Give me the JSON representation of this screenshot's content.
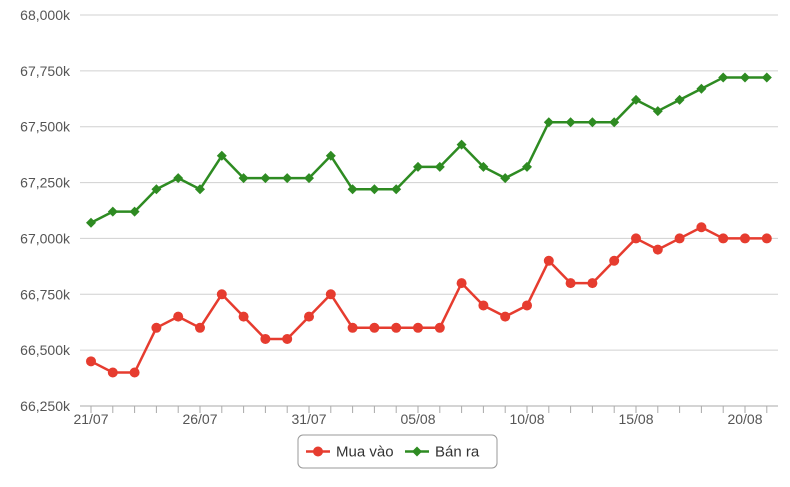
{
  "chart_data": {
    "type": "line",
    "title": "",
    "xlabel": "",
    "ylabel": "",
    "ylim": [
      66250,
      68000
    ],
    "y_ticks": [
      "66,250k",
      "66,500k",
      "66,750k",
      "67,000k",
      "67,250k",
      "67,500k",
      "67,750k",
      "68,000k"
    ],
    "x": [
      "21/07",
      "22/07",
      "23/07",
      "24/07",
      "25/07",
      "26/07",
      "27/07",
      "28/07",
      "29/07",
      "30/07",
      "31/07",
      "01/08",
      "02/08",
      "03/08",
      "04/08",
      "05/08",
      "06/08",
      "07/08",
      "08/08",
      "09/08",
      "10/08",
      "11/08",
      "12/08",
      "13/08",
      "14/08",
      "15/08",
      "16/08",
      "17/08",
      "18/08",
      "19/08",
      "20/08",
      "21/08"
    ],
    "x_tick_labels": [
      "21/07",
      "26/07",
      "31/07",
      "05/08",
      "10/08",
      "15/08",
      "20/08"
    ],
    "grid": true,
    "legend_position": "bottom-center",
    "series": [
      {
        "name": "Mua vào",
        "color": "#e63c2f",
        "marker": "circle",
        "values": [
          66450,
          66400,
          66400,
          66600,
          66650,
          66600,
          66750,
          66650,
          66550,
          66550,
          66650,
          66750,
          66600,
          66600,
          66600,
          66600,
          66600,
          66800,
          66700,
          66650,
          66700,
          66900,
          66800,
          66800,
          66900,
          67000,
          66950,
          67000,
          67050,
          67000,
          67000,
          67000
        ]
      },
      {
        "name": "Bán ra",
        "color": "#2e8b22",
        "marker": "diamond",
        "values": [
          67070,
          67120,
          67120,
          67220,
          67270,
          67220,
          67370,
          67270,
          67270,
          67270,
          67270,
          67370,
          67220,
          67220,
          67220,
          67320,
          67320,
          67420,
          67320,
          67270,
          67320,
          67520,
          67520,
          67520,
          67520,
          67620,
          67570,
          67620,
          67670,
          67720,
          67720,
          67720
        ]
      }
    ]
  }
}
